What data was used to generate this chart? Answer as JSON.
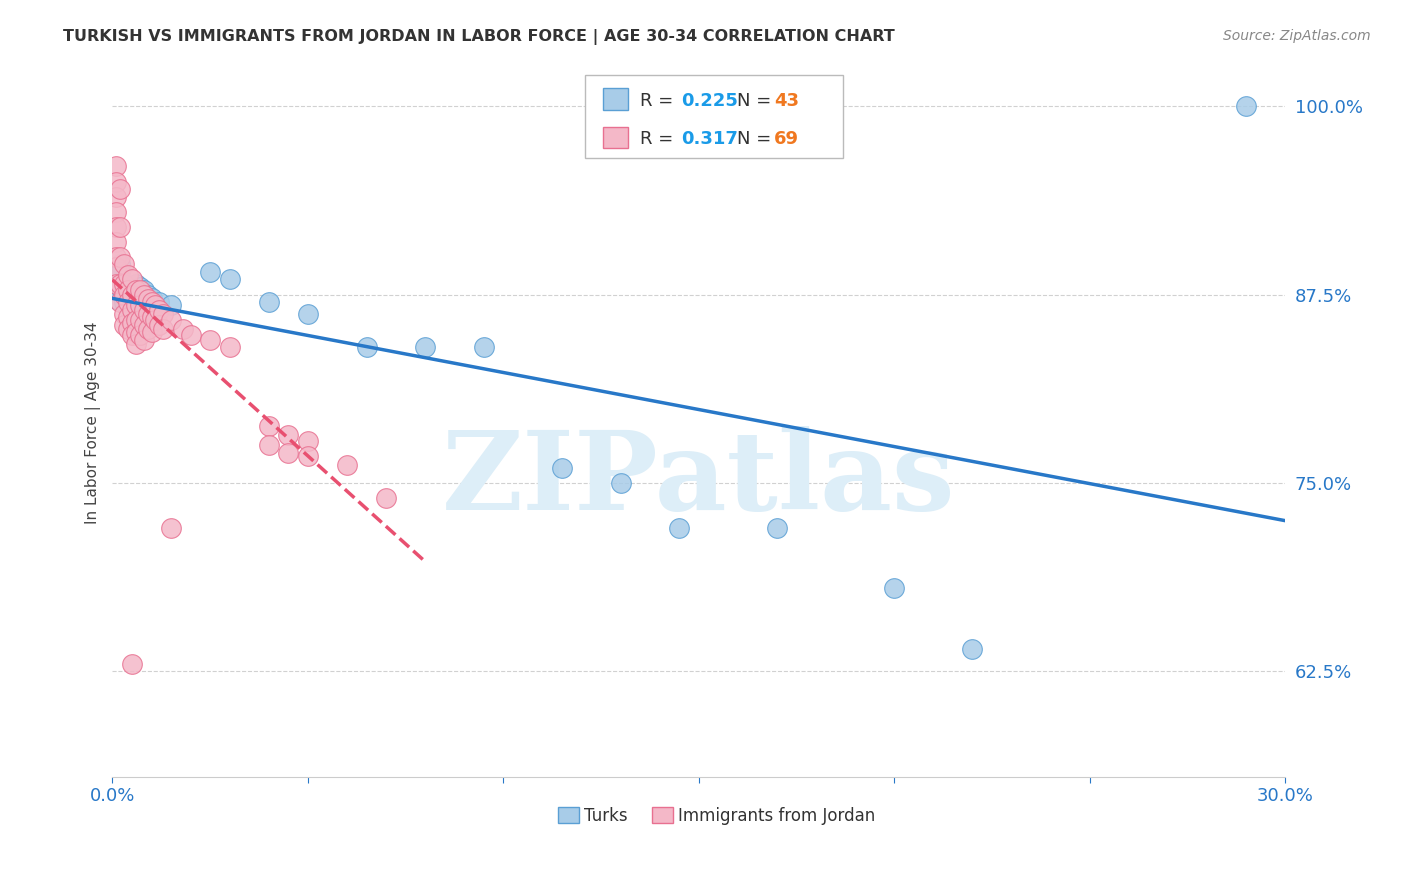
{
  "title": "TURKISH VS IMMIGRANTS FROM JORDAN IN LABOR FORCE | AGE 30-34 CORRELATION CHART",
  "source": "Source: ZipAtlas.com",
  "ylabel": "In Labor Force | Age 30-34",
  "xlim": [
    0.0,
    0.3
  ],
  "ylim": [
    0.555,
    1.025
  ],
  "xticks": [
    0.0,
    0.05,
    0.1,
    0.15,
    0.2,
    0.25,
    0.3
  ],
  "xtick_labels": [
    "0.0%",
    "",
    "",
    "",
    "",
    "",
    "30.0%"
  ],
  "yticks": [
    0.625,
    0.75,
    0.875,
    1.0
  ],
  "ytick_labels": [
    "62.5%",
    "75.0%",
    "87.5%",
    "100.0%"
  ],
  "blue_color": "#a8cce8",
  "pink_color": "#f4b8c8",
  "blue_edge_color": "#5a9fd4",
  "pink_edge_color": "#e87090",
  "blue_line_color": "#2878c8",
  "pink_line_color": "#e85070",
  "r_blue": 0.225,
  "n_blue": 43,
  "r_pink": 0.317,
  "n_pink": 69,
  "legend_r_color": "#1a9be8",
  "legend_n_color": "#f07820",
  "watermark_color": "#ddeef8",
  "blue_scatter": [
    [
      0.001,
      0.878
    ],
    [
      0.001,
      0.872
    ],
    [
      0.002,
      0.895
    ],
    [
      0.002,
      0.89
    ],
    [
      0.002,
      0.88
    ],
    [
      0.003,
      0.877
    ],
    [
      0.003,
      0.873
    ],
    [
      0.003,
      0.87
    ],
    [
      0.004,
      0.875
    ],
    [
      0.004,
      0.87
    ],
    [
      0.004,
      0.866
    ],
    [
      0.005,
      0.872
    ],
    [
      0.005,
      0.868
    ],
    [
      0.005,
      0.862
    ],
    [
      0.006,
      0.882
    ],
    [
      0.006,
      0.875
    ],
    [
      0.006,
      0.868
    ],
    [
      0.007,
      0.88
    ],
    [
      0.007,
      0.872
    ],
    [
      0.007,
      0.865
    ],
    [
      0.008,
      0.878
    ],
    [
      0.008,
      0.87
    ],
    [
      0.008,
      0.862
    ],
    [
      0.009,
      0.875
    ],
    [
      0.009,
      0.868
    ],
    [
      0.01,
      0.873
    ],
    [
      0.01,
      0.865
    ],
    [
      0.012,
      0.87
    ],
    [
      0.015,
      0.868
    ],
    [
      0.025,
      0.89
    ],
    [
      0.03,
      0.885
    ],
    [
      0.04,
      0.87
    ],
    [
      0.05,
      0.862
    ],
    [
      0.065,
      0.84
    ],
    [
      0.08,
      0.84
    ],
    [
      0.095,
      0.84
    ],
    [
      0.115,
      0.76
    ],
    [
      0.13,
      0.75
    ],
    [
      0.145,
      0.72
    ],
    [
      0.17,
      0.72
    ],
    [
      0.2,
      0.68
    ],
    [
      0.22,
      0.64
    ],
    [
      0.29,
      1.0
    ]
  ],
  "pink_scatter": [
    [
      0.001,
      0.96
    ],
    [
      0.001,
      0.95
    ],
    [
      0.001,
      0.94
    ],
    [
      0.001,
      0.93
    ],
    [
      0.001,
      0.92
    ],
    [
      0.001,
      0.91
    ],
    [
      0.001,
      0.9
    ],
    [
      0.001,
      0.893
    ],
    [
      0.001,
      0.882
    ],
    [
      0.002,
      0.945
    ],
    [
      0.002,
      0.92
    ],
    [
      0.002,
      0.9
    ],
    [
      0.002,
      0.882
    ],
    [
      0.002,
      0.87
    ],
    [
      0.003,
      0.895
    ],
    [
      0.003,
      0.882
    ],
    [
      0.003,
      0.875
    ],
    [
      0.003,
      0.862
    ],
    [
      0.003,
      0.855
    ],
    [
      0.004,
      0.888
    ],
    [
      0.004,
      0.878
    ],
    [
      0.004,
      0.87
    ],
    [
      0.004,
      0.86
    ],
    [
      0.004,
      0.852
    ],
    [
      0.005,
      0.885
    ],
    [
      0.005,
      0.875
    ],
    [
      0.005,
      0.865
    ],
    [
      0.005,
      0.856
    ],
    [
      0.005,
      0.848
    ],
    [
      0.006,
      0.878
    ],
    [
      0.006,
      0.868
    ],
    [
      0.006,
      0.858
    ],
    [
      0.006,
      0.85
    ],
    [
      0.006,
      0.842
    ],
    [
      0.007,
      0.878
    ],
    [
      0.007,
      0.868
    ],
    [
      0.007,
      0.858
    ],
    [
      0.007,
      0.848
    ],
    [
      0.008,
      0.875
    ],
    [
      0.008,
      0.865
    ],
    [
      0.008,
      0.855
    ],
    [
      0.008,
      0.845
    ],
    [
      0.009,
      0.872
    ],
    [
      0.009,
      0.862
    ],
    [
      0.009,
      0.852
    ],
    [
      0.01,
      0.87
    ],
    [
      0.01,
      0.86
    ],
    [
      0.01,
      0.85
    ],
    [
      0.011,
      0.868
    ],
    [
      0.011,
      0.858
    ],
    [
      0.012,
      0.865
    ],
    [
      0.012,
      0.855
    ],
    [
      0.013,
      0.862
    ],
    [
      0.013,
      0.852
    ],
    [
      0.015,
      0.858
    ],
    [
      0.018,
      0.852
    ],
    [
      0.02,
      0.848
    ],
    [
      0.025,
      0.845
    ],
    [
      0.03,
      0.84
    ],
    [
      0.04,
      0.788
    ],
    [
      0.04,
      0.775
    ],
    [
      0.045,
      0.782
    ],
    [
      0.045,
      0.77
    ],
    [
      0.05,
      0.778
    ],
    [
      0.05,
      0.768
    ],
    [
      0.06,
      0.762
    ],
    [
      0.07,
      0.74
    ],
    [
      0.015,
      0.72
    ],
    [
      0.005,
      0.63
    ]
  ]
}
